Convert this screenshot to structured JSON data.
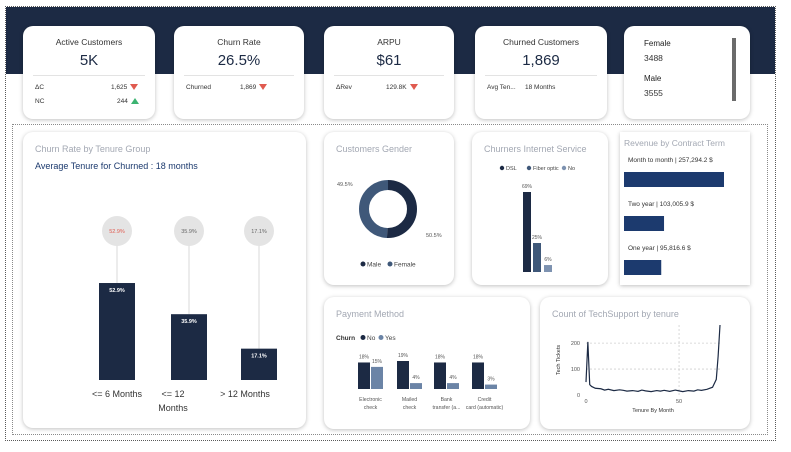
{
  "kpis": {
    "active": {
      "title": "Active Customers",
      "value": "5K",
      "rows": [
        {
          "label": "ΔC",
          "value": "1,625",
          "dir": "down"
        },
        {
          "label": "NC",
          "value": "244",
          "dir": "up"
        }
      ]
    },
    "churn_rate": {
      "title": "Churn Rate",
      "value": "26.5%",
      "row_label": "Churned",
      "row_value": "1,869"
    },
    "arpu": {
      "title": "ARPU",
      "value": "$61",
      "row_label": "ΔRev",
      "row_value": "129.8K"
    },
    "churned": {
      "title": "Churned Customers",
      "value": "1,869",
      "row_label": "Avg Ten...",
      "row_value": "18 Months"
    },
    "gender": {
      "female_label": "Female",
      "female_value": "3488",
      "male_label": "Male",
      "male_value": "3555"
    }
  },
  "tenure_chart": {
    "title": "Churn Rate by Tenure Group",
    "subtitle": "Average Tenure for Churned : 18 months"
  },
  "gender_chart": {
    "title": "Customers Gender"
  },
  "internet_chart": {
    "title": "Churners Internet Service"
  },
  "contract_chart": {
    "title": "Revenue by Contract Term"
  },
  "payment_chart": {
    "title": "Payment Method",
    "legend_title": "Churn"
  },
  "techsupport_chart": {
    "title": "Count of TechSupport by tenure"
  },
  "chart_data": [
    {
      "type": "bar",
      "title": "Churn Rate by Tenure Group",
      "categories": [
        "<= 6 Months",
        "<= 12 Months",
        "> 12 Months"
      ],
      "values": [
        52.9,
        35.9,
        17.1
      ],
      "labels": [
        "52.9%",
        "35.9%",
        "17.1%"
      ],
      "color": "#1c2a44"
    },
    {
      "type": "pie",
      "title": "Customers Gender",
      "categories": [
        "Male",
        "Female"
      ],
      "values": [
        50.5,
        49.5
      ],
      "labels": [
        "50.5%",
        "49.5%"
      ],
      "colors": [
        "#1c2a44",
        "#3f5879"
      ],
      "legend": "bottom"
    },
    {
      "type": "bar",
      "title": "Churners Internet Service",
      "categories": [
        "DSL",
        "Fiber optic",
        "No"
      ],
      "values": [
        69,
        25,
        6
      ],
      "labels": [
        "69%",
        "25%",
        "6%"
      ],
      "colors": [
        "#1c2a44",
        "#3f5879",
        "#7d92b0"
      ],
      "legend": "top"
    },
    {
      "type": "bar",
      "title": "Revenue by Contract Term",
      "categories": [
        "Month to month",
        "Two year",
        "One year"
      ],
      "values": [
        257294.2,
        103005.9,
        95816.6
      ],
      "labels": [
        "Month to month | 257,294.2 $",
        "Two year | 103,005.9 $",
        "One year | 95,816.6 $"
      ],
      "color": "#1c3a6e"
    },
    {
      "type": "bar",
      "title": "Payment Method",
      "categories": [
        "Electronic check",
        "Mailed check",
        "Bank transfer (a...",
        "Credit card (automatic)"
      ],
      "series": [
        {
          "name": "No",
          "values": [
            18,
            19,
            18,
            18
          ],
          "labels": [
            "18%",
            "19%",
            "18%",
            "18%"
          ],
          "color": "#1c2a44"
        },
        {
          "name": "Yes",
          "values": [
            15,
            4,
            4,
            3
          ],
          "labels": [
            "15%",
            "4%",
            "4%",
            "3%"
          ],
          "color": "#6b84a6"
        }
      ],
      "legend": "top-left"
    },
    {
      "type": "line",
      "title": "Count of TechSupport by tenure",
      "xlabel": "Tenure By Month",
      "ylabel": "Tech Tickets",
      "xticks": [
        "0",
        "50"
      ],
      "yticks": [
        "0",
        "100",
        "200"
      ],
      "ylim": [
        0,
        270
      ],
      "xlim": [
        0,
        72
      ],
      "x": [
        0,
        1,
        2,
        3,
        5,
        8,
        10,
        12,
        15,
        18,
        20,
        22,
        25,
        28,
        30,
        32,
        35,
        38,
        40,
        42,
        45,
        48,
        50,
        52,
        55,
        58,
        60,
        62,
        65,
        68,
        70,
        71,
        72
      ],
      "y": [
        50,
        205,
        40,
        33,
        26,
        24,
        19,
        22,
        17,
        20,
        18,
        15,
        17,
        14,
        19,
        16,
        13,
        17,
        15,
        18,
        14,
        19,
        16,
        13,
        17,
        15,
        20,
        18,
        22,
        30,
        60,
        150,
        270
      ],
      "color": "#1c2a44"
    }
  ]
}
